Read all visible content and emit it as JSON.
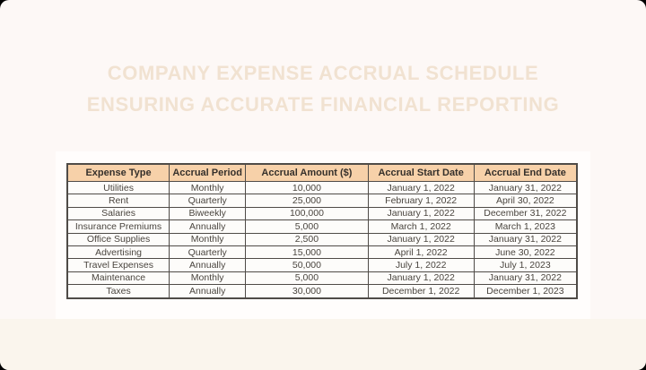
{
  "title": {
    "line1": "COMPANY EXPENSE ACCRUAL SCHEDULE",
    "line2": "ENSURING ACCURATE FINANCIAL REPORTING"
  },
  "table": {
    "columns": [
      "Expense Type",
      "Accrual Period",
      "Accrual Amount ($)",
      "Accrual Start Date",
      "Accrual End Date"
    ],
    "rows": [
      [
        "Utilities",
        "Monthly",
        "10,000",
        "January 1, 2022",
        "January 31, 2022"
      ],
      [
        "Rent",
        "Quarterly",
        "25,000",
        "February 1, 2022",
        "April 30, 2022"
      ],
      [
        "Salaries",
        "Biweekly",
        "100,000",
        "January 1, 2022",
        "December 31, 2022"
      ],
      [
        "Insurance Premiums",
        "Annually",
        "5,000",
        "March 1, 2022",
        "March 1, 2023"
      ],
      [
        "Office Supplies",
        "Monthly",
        "2,500",
        "January 1, 2022",
        "January 31, 2022"
      ],
      [
        "Advertising",
        "Quarterly",
        "15,000",
        "April 1, 2022",
        "June 30, 2022"
      ],
      [
        "Travel Expenses",
        "Annually",
        "50,000",
        "July 1, 2022",
        "July 1, 2023"
      ],
      [
        "Maintenance",
        "Monthly",
        "5,000",
        "January 1, 2022",
        "January 31, 2022"
      ],
      [
        "Taxes",
        "Annually",
        "30,000",
        "December 1, 2022",
        "December 1, 2023"
      ]
    ]
  },
  "colors": {
    "page_bg": "#fdf8f6",
    "band_bg": "#faf5ed",
    "card_bg": "#fffdfc",
    "cell_bg": "#fdfcfa",
    "header_bg": "#f7d1a9",
    "border_color": "#4f4b47",
    "title_color": "#f1e2d1"
  }
}
